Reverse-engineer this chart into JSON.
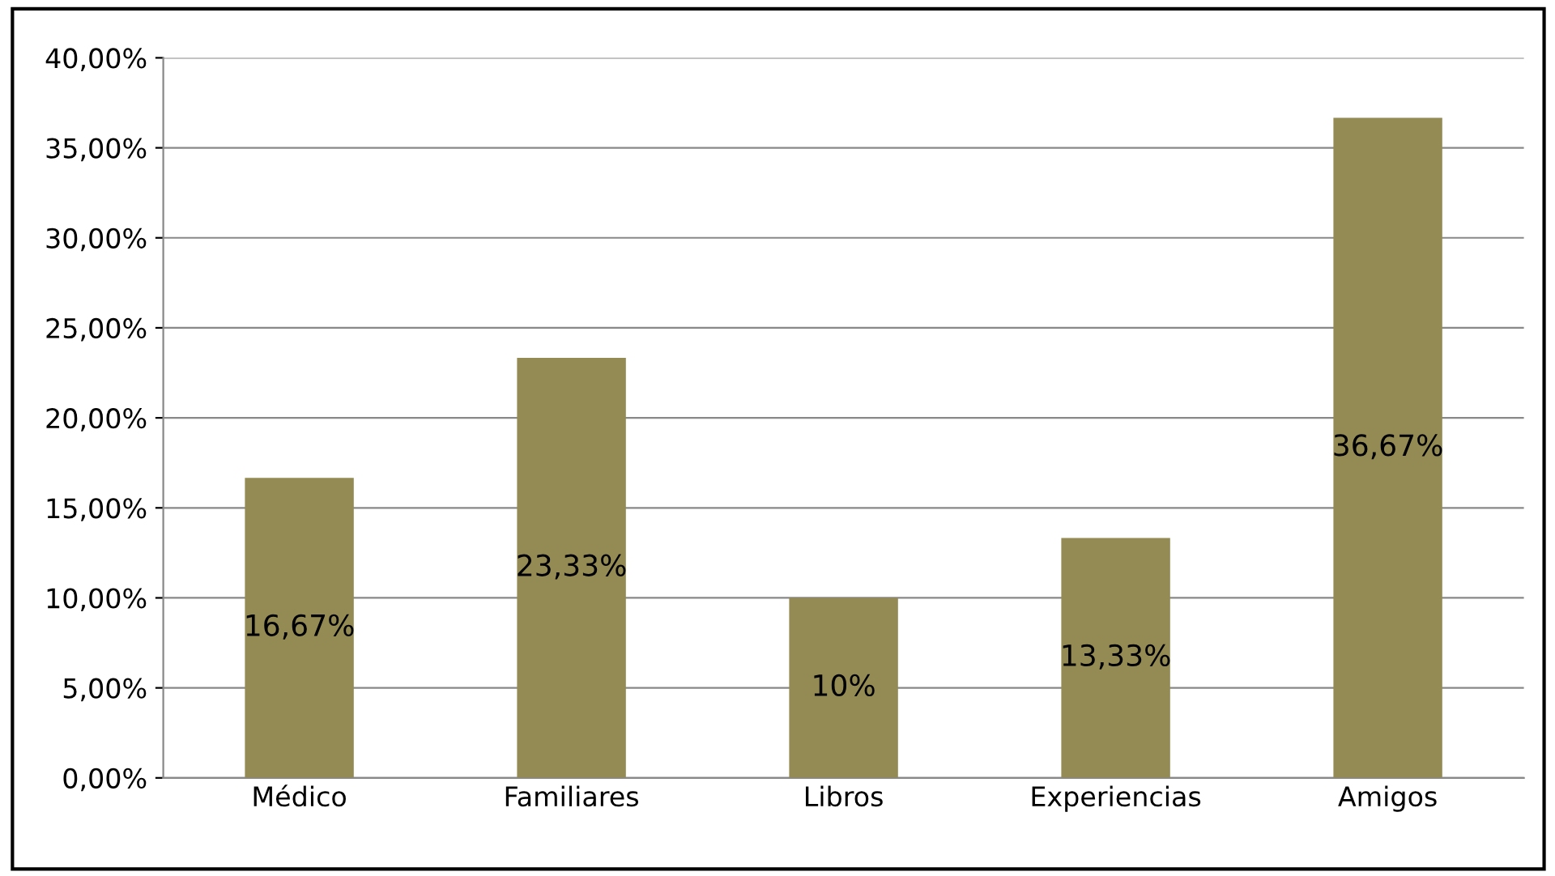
{
  "chart_data": {
    "type": "bar",
    "categories": [
      "Médico",
      "Familiares",
      "Libros",
      "Experiencias",
      "Amigos"
    ],
    "values": [
      16.67,
      23.33,
      10,
      13.33,
      36.67
    ],
    "value_labels": [
      "16,67%",
      "23,33%",
      "10%",
      "13,33%",
      "36,67%"
    ],
    "color": "#948a54",
    "ylim": [
      0,
      40
    ],
    "yticks": [
      {
        "value": 0,
        "label": "0,00%"
      },
      {
        "value": 5,
        "label": "5,00%"
      },
      {
        "value": 10,
        "label": "10,00%"
      },
      {
        "value": 15,
        "label": "15,00%"
      },
      {
        "value": 20,
        "label": "20,00%"
      },
      {
        "value": 25,
        "label": "25,00%"
      },
      {
        "value": 30,
        "label": "30,00%"
      },
      {
        "value": 35,
        "label": "35,00%"
      },
      {
        "value": 40,
        "label": "40,00%"
      }
    ],
    "grid": "y",
    "legend": false
  }
}
